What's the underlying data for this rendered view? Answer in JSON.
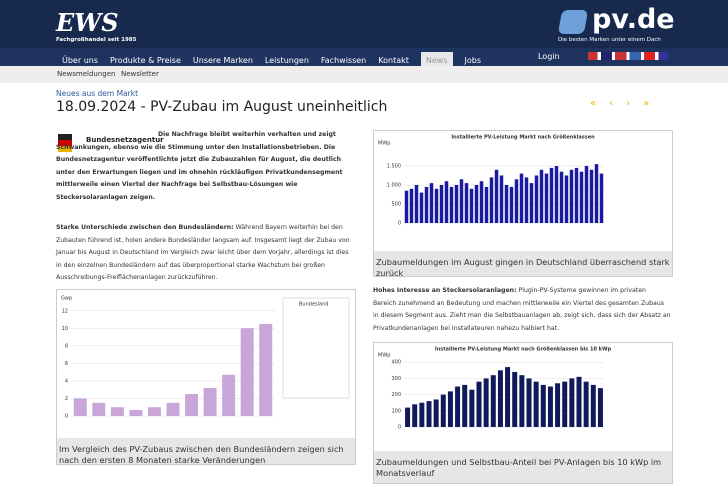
{
  "header": {
    "logo": "EWS",
    "logo_sub": "Fachgroßhandel seit 1985",
    "brand": "pv.de",
    "brand_sub": "Die besten Marken unter einem Dach"
  },
  "nav": {
    "items": [
      "Über uns",
      "Produkte & Preise",
      "Unsere Marken",
      "Leistungen",
      "Fachwissen",
      "Kontakt",
      "News",
      "Jobs"
    ],
    "login": "Login"
  },
  "subnav": [
    "Newsmeldungen",
    "Newsletter"
  ],
  "article": {
    "kicker": "Neues aus dem Markt",
    "title": "18.09.2024 - PV-Zubau im August uneinheitlich",
    "logo_label": "Bundesnetzagentur",
    "lead": "Die Nachfrage bleibt weiterhin verhalten und zeigt Schwankungen, ebenso wie die Stimmung unter den Installationsbetrieben. Die Bundesnetzagentur veröffentlichte jetzt die Zubauzahlen für August, die deutlich unter den Erwartungen liegen und im ohnehin rückläufigen Privatkundensegment mittlerweile einen Viertel der Nachfrage bei Selbstbau-Lösungen wie Steckersolaranlagen zeigen.",
    "para1_bold": "Starke Unterschiede zwischen den Bundesländern:",
    "para1": "Während Bayern weiterhin bei den Zubauten führend ist, holen andere Bundesländer langsam auf. Insgesamt liegt der Zubau von Januar bis August in Deutschland im Vergleich zwar leicht über dem Vorjahr, allerdings ist dies in den einzelnen Bundesländern auf das überproportional starke Wachstum bei großen Ausschreibungs-Freiflächenanlagen zurückzuführen.",
    "para2_bold": "Hohes Interesse an Steckersolaranlagen:",
    "para2": "Plugin-PV-Systeme gewinnen im privaten Bereich zunehmend an Bedeutung und machen mittlerweile ein Viertel des gesamten Zubaus in diesem Segment aus. Zieht man die Selbstbauanlagen ab, zeigt sich, dass sich der Absatz an Privatkundenanlagen bei Installateuren nahezu halbiert hat.",
    "figures": [
      {
        "type": "bar",
        "axis_label": "Gwp",
        "legend": "Bundesland",
        "color": "#c9a6d8",
        "values": [
          2,
          1.5,
          1,
          0.7,
          1,
          1.5,
          2.5,
          3.2,
          4.7,
          10,
          10.5
        ],
        "ylim": [
          0,
          13
        ],
        "yticks": [
          0,
          2,
          4,
          6,
          8,
          10,
          12
        ],
        "caption": "Im Vergleich des PV-Zubaus zwischen den Bundesländern zeigen sich nach den ersten 8 Monaten starke Veränderungen"
      },
      {
        "type": "bar",
        "title": "Installierte PV-Leistung Markt nach Größenklassen",
        "axis_label": "MWp",
        "color": "#1a1aa0",
        "values": [
          850,
          900,
          1000,
          800,
          950,
          1050,
          900,
          1000,
          1100,
          950,
          1000,
          1150,
          1050,
          900,
          1000,
          1100,
          950,
          1200,
          1400,
          1250,
          1000,
          950,
          1150,
          1300,
          1200,
          1050,
          1250,
          1400,
          1300,
          1450,
          1500,
          1350,
          1250,
          1400,
          1450,
          1350,
          1500,
          1400,
          1550,
          1300
        ],
        "ylim": [
          0,
          2000
        ],
        "yticks": [
          0,
          500,
          {
            "value": 1000,
            "label": "1.000"
          },
          {
            "value": 1500,
            "label": "1.500"
          }
        ],
        "caption": "Zubaumeldungen im August gingen in Deutschland überraschend stark zurück"
      },
      {
        "type": "bar",
        "title": "Installierte PV-Leistung Markt nach Größenklassen bis 10 kWp",
        "axis_label": "MWp",
        "color": "#101a5a",
        "values": [
          120,
          140,
          150,
          160,
          170,
          200,
          220,
          250,
          260,
          230,
          280,
          300,
          320,
          350,
          370,
          340,
          320,
          300,
          280,
          260,
          250,
          270,
          280,
          300,
          310,
          280,
          260,
          240
        ],
        "ylim": [
          0,
          420
        ],
        "yticks": [
          0,
          100,
          200,
          300,
          400
        ],
        "caption": "Zubaumeldungen und Selbstbau-Anteil bei PV-Anlagen bis 10 kWp im Monatsverlauf"
      }
    ]
  }
}
